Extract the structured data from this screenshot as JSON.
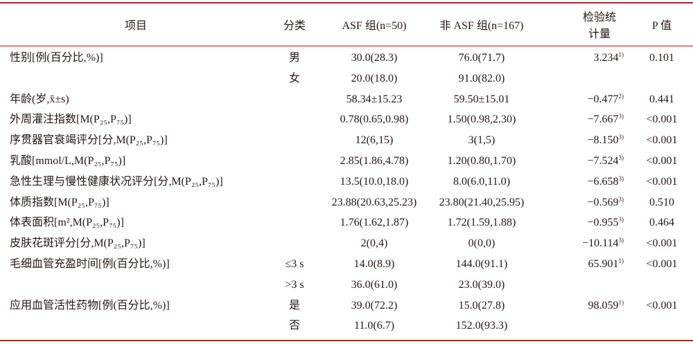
{
  "table": {
    "header": {
      "item": "项目",
      "category": "分类",
      "asf": "ASF 组(n=50)",
      "non_asf": "非 ASF 组(n=167)",
      "stat": [
        "检验统",
        "计量"
      ],
      "p": "P 值"
    },
    "rows": [
      {
        "label": "性别[例(百分比,%)]",
        "category": "男",
        "asf": "30.0(28.3)",
        "non_asf": "76.0(71.7)",
        "stat": "3.234",
        "note": "1)",
        "p": "0.101"
      },
      {
        "category": "女",
        "asf": "20.0(18.0)",
        "non_asf": "91.0(82.0)"
      },
      {
        "label": "年龄(岁,x̄±s)",
        "asf": "58.34±15.23",
        "non_asf": "59.50±15.01",
        "stat": "−0.477",
        "note": "2)",
        "p": "0.441"
      },
      {
        "label": "外周灌注指数[M(P₂₅,P₇₅)]",
        "asf": "0.78(0.65,0.98)",
        "non_asf": "1.50(0.98,2.30)",
        "stat": "−7.667",
        "note": "3)",
        "p": "<0.001"
      },
      {
        "label": "序贯器官衰竭评分[分,M(P₂₅,P₇₅)]",
        "asf": "12(6,15)",
        "non_asf": "3(1,5)",
        "stat": "−8.150",
        "note": "3)",
        "p": "<0.001"
      },
      {
        "label": "乳酸[mmol/L,M(P₂₅,P₇₅)]",
        "asf": "2.85(1.86,4.78)",
        "non_asf": "1.20(0.80,1.70)",
        "stat": "−7.524",
        "note": "3)",
        "p": "<0.001"
      },
      {
        "label": "急性生理与慢性健康状况评分[分,M(P₂₅,P₇₅)]",
        "asf": "13.5(10.0,18.0)",
        "non_asf": "8.0(6.0,11.0)",
        "stat": "−6.658",
        "note": "3)",
        "p": "<0.001"
      },
      {
        "label": "体质指数[M(P₂₅,P₇₅)]",
        "asf": "23.88(20.63,25.23)",
        "non_asf": "23.80(21.40,25.95)",
        "stat": "−0.569",
        "note": "3)",
        "p": "0.510"
      },
      {
        "label": "体表面积[m²,M(P₂₅,P₇₅)]",
        "asf": "1.76(1.62,1.87)",
        "non_asf": "1.72(1.59,1.88)",
        "stat": "−0.955",
        "note": "3)",
        "p": "0.464"
      },
      {
        "label": "皮肤花斑评分[分,M(P₂₅,P₇₅)]",
        "asf": "2(0,4)",
        "non_asf": "0(0,0)",
        "stat": "−10.114",
        "note": "3)",
        "p": "<0.001"
      },
      {
        "label": "毛细血管充盈时间[例(百分比,%)]",
        "category": "≤3 s",
        "asf": "14.0(8.9)",
        "non_asf": "144.0(91.1)",
        "stat": "65.901",
        "note": "1)",
        "p": "<0.001"
      },
      {
        "category": ">3 s",
        "asf": "36.0(61.0)",
        "non_asf": "23.0(39.0)"
      },
      {
        "label": "应用血管活性药物[例(百分比,%)]",
        "category": "是",
        "asf": "39.0(72.2)",
        "non_asf": "15.0(27.8)",
        "stat": "98.059",
        "note": "1)",
        "p": "<0.001"
      },
      {
        "category": "否",
        "asf": "11.0(6.7)",
        "non_asf": "152.0(93.3)"
      }
    ]
  }
}
